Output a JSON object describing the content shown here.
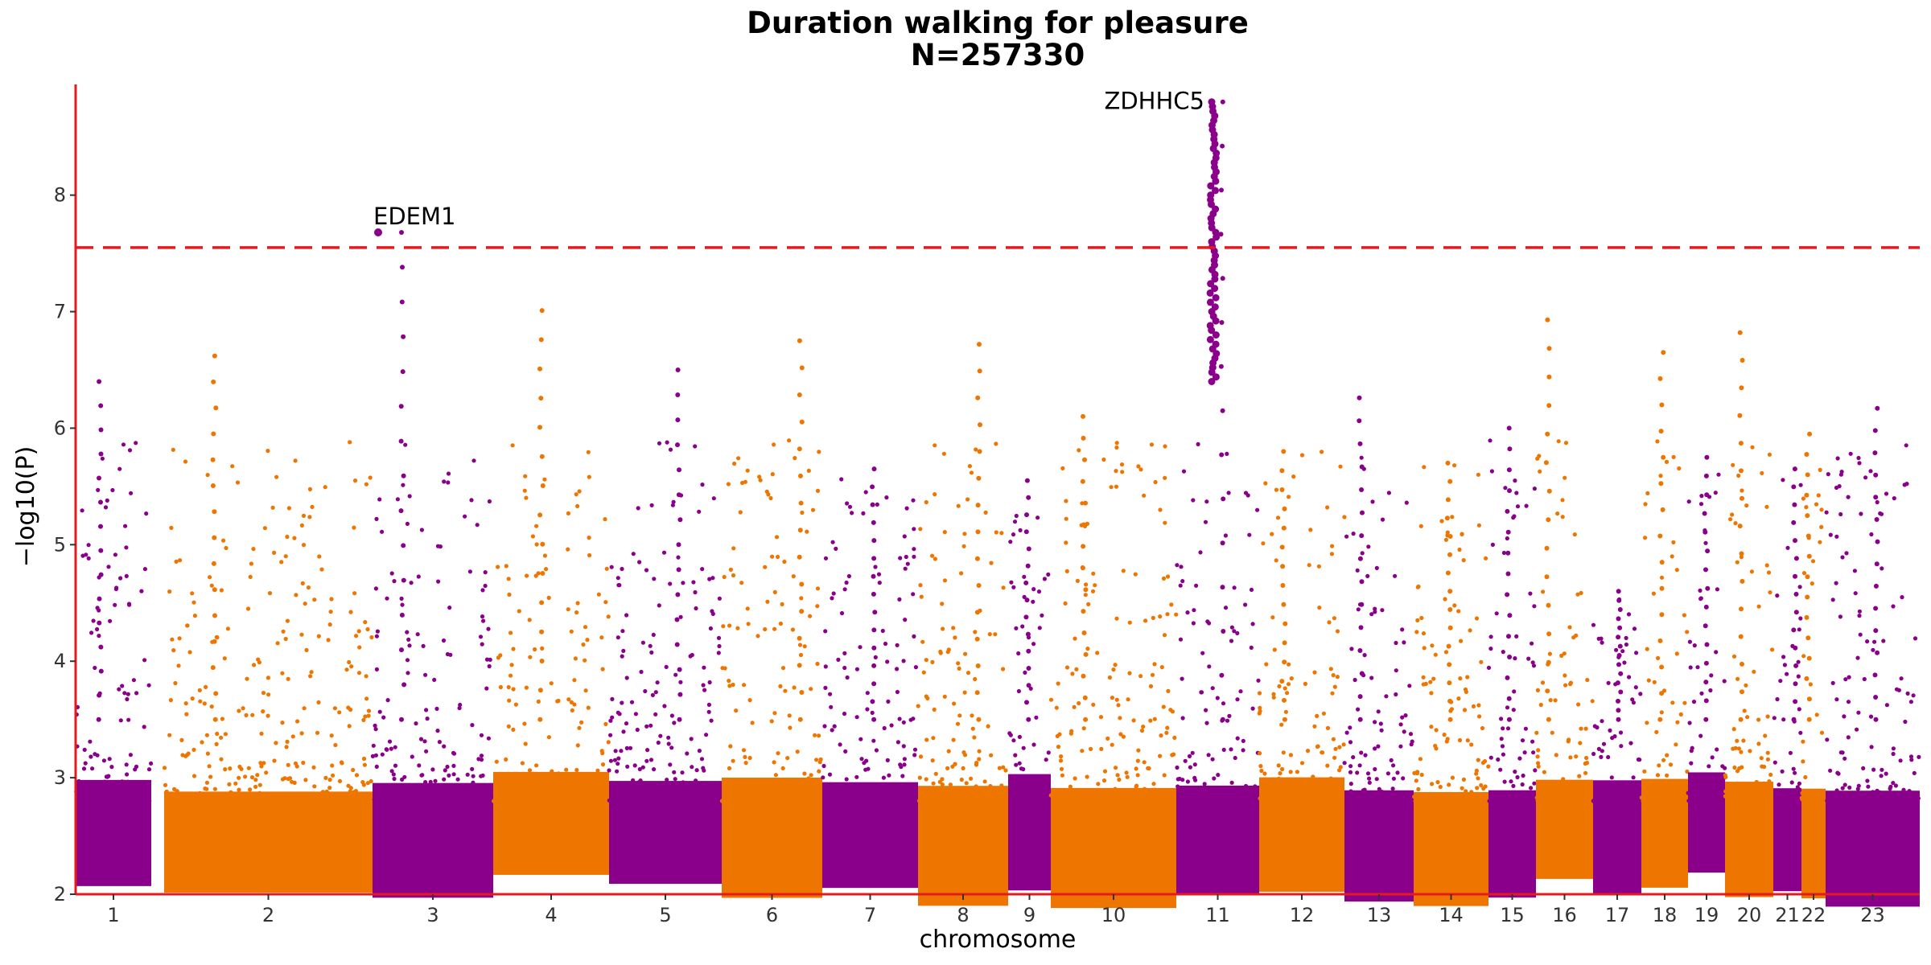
{
  "chart_data": {
    "type": "scatter",
    "subtype": "manhattan",
    "title": "Duration walking for pleasure",
    "subtitle": "N=257330",
    "xlabel": "chromosome",
    "ylabel": "−log10(P)",
    "ylim": [
      2,
      8.95
    ],
    "yticks": [
      2,
      3,
      4,
      5,
      6,
      7,
      8
    ],
    "threshold": 7.55,
    "colors": {
      "odd": "#8B008B",
      "even": "#EE7600",
      "axis": "#E41A1C",
      "threshold": "#E41A1C"
    },
    "chromosomes": [
      {
        "label": "1",
        "max": 6.4
      },
      {
        "label": "2",
        "max": 6.62
      },
      {
        "label": "3",
        "max": 7.68
      },
      {
        "label": "4",
        "max": 7.01
      },
      {
        "label": "5",
        "max": 6.5
      },
      {
        "label": "6",
        "max": 6.75
      },
      {
        "label": "7",
        "max": 5.65
      },
      {
        "label": "8",
        "max": 6.72
      },
      {
        "label": "9",
        "max": 5.55
      },
      {
        "label": "10",
        "max": 6.1
      },
      {
        "label": "11",
        "max": 8.8
      },
      {
        "label": "12",
        "max": 5.8
      },
      {
        "label": "13",
        "max": 6.26
      },
      {
        "label": "14",
        "max": 5.7
      },
      {
        "label": "15",
        "max": 6.0
      },
      {
        "label": "16",
        "max": 6.93
      },
      {
        "label": "17",
        "max": 4.6
      },
      {
        "label": "18",
        "max": 6.65
      },
      {
        "label": "19",
        "max": 5.75
      },
      {
        "label": "20",
        "max": 6.82
      },
      {
        "label": "21",
        "max": 5.65
      },
      {
        "label": "22",
        "max": 5.95
      },
      {
        "label": "23",
        "max": 6.17
      }
    ],
    "annotations": [
      {
        "label": "EDEM1",
        "chromosome": "3",
        "y": 7.68
      },
      {
        "label": "ZDHHC5",
        "chromosome": "11",
        "y": 8.8
      }
    ]
  }
}
